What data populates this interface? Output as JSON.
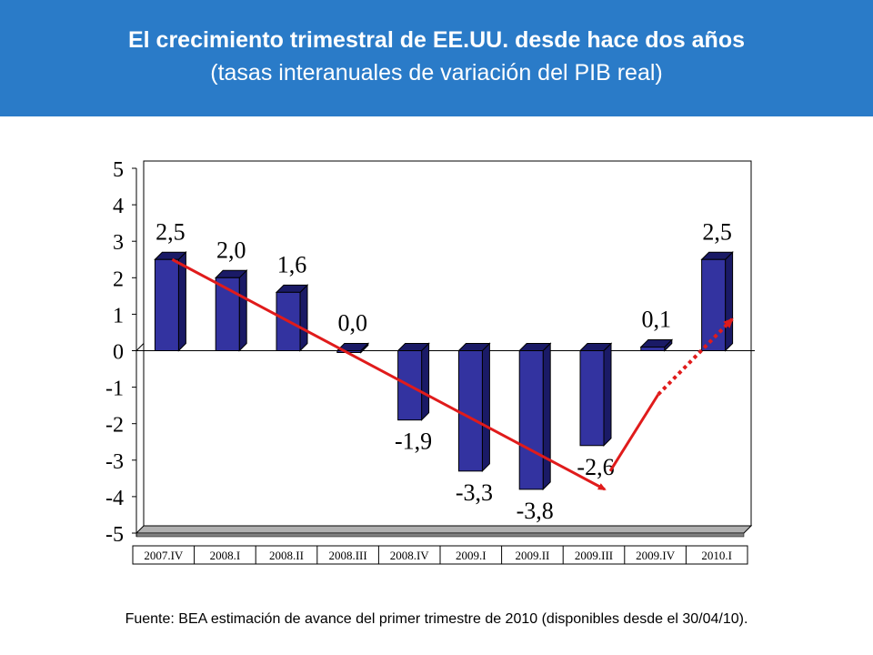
{
  "header": {
    "title": "El crecimiento trimestral de EE.UU. desde hace dos años",
    "subtitle": "(tasas interanuales de variación del PIB real)"
  },
  "source": "Fuente: BEA estimación de avance del primer trimestre de 2010 (disponibles desde el 30/04/10).",
  "colors": {
    "header_bg": "#2a7bc8",
    "bar_front": "#3333a0",
    "bar_side": "#1a1a66",
    "trend": "#e01b1b"
  },
  "chart_data": {
    "type": "bar",
    "categories": [
      "2007.IV",
      "2008.I",
      "2008.II",
      "2008.III",
      "2008.IV",
      "2009.I",
      "2009.II",
      "2009.III",
      "2009.IV",
      "2010.I"
    ],
    "values": [
      2.5,
      2.0,
      1.6,
      0.0,
      -1.9,
      -3.3,
      -3.8,
      -2.6,
      0.1,
      2.5
    ],
    "data_labels": [
      "2,5",
      "2,0",
      "1,6",
      "0,0",
      "-1,9",
      "-3,3",
      "-3,8",
      "-2,6",
      "0,1",
      "2,5"
    ],
    "ylim": [
      -5,
      5
    ],
    "yticks": [
      "5",
      "4",
      "3",
      "2",
      "1",
      "0",
      "-1",
      "-2",
      "-3",
      "-4",
      "-5"
    ],
    "style": "3d-bar",
    "annotations": [
      {
        "type": "arrow",
        "style": "solid",
        "from": {
          "category": "2007.IV",
          "y": 2.5
        },
        "to": {
          "category": "2009.III",
          "y": -3.8
        }
      },
      {
        "type": "arrow",
        "style": "solid",
        "from": {
          "category": "2009.III",
          "y": -3.3
        },
        "to": {
          "category": "2009.IV",
          "y": -1.2
        }
      },
      {
        "type": "arrow",
        "style": "dotted",
        "from": {
          "category": "2009.IV",
          "y": -1.2
        },
        "to": {
          "category": "2010.I",
          "y": 0.9
        }
      }
    ]
  }
}
